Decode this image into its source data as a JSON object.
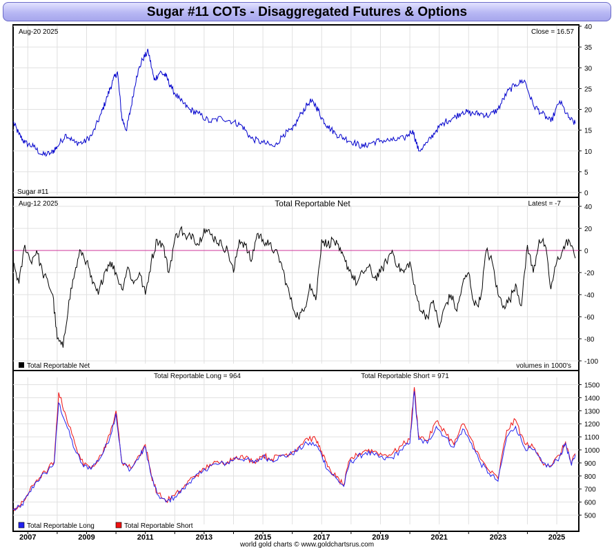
{
  "title": "Sugar #11 COTs - Disaggregated Futures & Options",
  "footer": "world gold charts © www.goldchartsrus.com",
  "colors": {
    "price": "#0000cc",
    "net": "#000000",
    "long": "#2222ee",
    "short": "#ee1111",
    "zero_line": "#cc3399",
    "background": "#ffffff",
    "panel_border": "#000000",
    "grid": "#e0e0e0"
  },
  "panels": {
    "price": {
      "date_label": "Aug-20  2025",
      "close_label": "Close = 16.57",
      "name_label": "Sugar #11"
    },
    "net": {
      "date_label": "Aug-12  2025",
      "title": "Total Reportable Net",
      "latest_label": "Latest = -7",
      "volume_note": "volumes in 1000's",
      "legend": "Total Reportable Net"
    },
    "ls": {
      "long_label": "Total Reportable Long = 964",
      "short_label": "Total Reportable Short = 971",
      "legend_long": "Total Reportable Long",
      "legend_short": "Total Reportable Short"
    }
  },
  "chart_data": [
    {
      "type": "line",
      "name": "price",
      "ylim": [
        0,
        40
      ],
      "yticks": [
        0,
        5,
        10,
        15,
        20,
        25,
        30,
        35,
        40
      ],
      "xlim": [
        2006.5,
        2025.75
      ],
      "x": [
        2006.5,
        2006.7,
        2006.9,
        2007.2,
        2007.5,
        2007.8,
        2008.0,
        2008.3,
        2008.6,
        2008.9,
        2009.2,
        2009.5,
        2009.7,
        2009.9,
        2010.05,
        2010.2,
        2010.35,
        2010.5,
        2010.7,
        2010.9,
        2011.1,
        2011.3,
        2011.5,
        2011.7,
        2011.9,
        2012.2,
        2012.5,
        2012.8,
        2013.2,
        2013.6,
        2014.0,
        2014.3,
        2014.6,
        2015.0,
        2015.4,
        2015.7,
        2016.0,
        2016.3,
        2016.6,
        2016.8,
        2017.0,
        2017.2,
        2017.5,
        2017.8,
        2018.1,
        2018.4,
        2018.7,
        2019.0,
        2019.4,
        2019.8,
        2020.1,
        2020.3,
        2020.6,
        2020.9,
        2021.2,
        2021.5,
        2021.8,
        2022.1,
        2022.4,
        2022.7,
        2023.0,
        2023.3,
        2023.6,
        2023.9,
        2024.2,
        2024.5,
        2024.8,
        2025.1,
        2025.4,
        2025.63
      ],
      "y": [
        17,
        14,
        12,
        11,
        9,
        9.5,
        11,
        14,
        12,
        12,
        14,
        19,
        23,
        27,
        29,
        18,
        15,
        20,
        28,
        32,
        34,
        27,
        29,
        28,
        25,
        22,
        20,
        19,
        17,
        18,
        17,
        16,
        13,
        12,
        11,
        14,
        15,
        19,
        22,
        21,
        18,
        16,
        14,
        13,
        12,
        11,
        12,
        12.5,
        12.5,
        13,
        15,
        10,
        12,
        15,
        17,
        18,
        19.5,
        19,
        19,
        18.5,
        20,
        24,
        26,
        27,
        21,
        19,
        17,
        22,
        18,
        16.57
      ],
      "ylabel": "",
      "labels": [
        "Sugar #11"
      ]
    },
    {
      "type": "line",
      "name": "Total Reportable Net",
      "ylim": [
        -100,
        40
      ],
      "yticks": [
        -100,
        -80,
        -60,
        -40,
        -20,
        0,
        20,
        40
      ],
      "xlim": [
        2006.5,
        2025.75
      ],
      "x": [
        2006.5,
        2006.7,
        2006.9,
        2007.1,
        2007.3,
        2007.5,
        2007.7,
        2007.85,
        2008.0,
        2008.2,
        2008.4,
        2008.6,
        2008.8,
        2009.0,
        2009.2,
        2009.4,
        2009.6,
        2009.8,
        2010.0,
        2010.2,
        2010.4,
        2010.6,
        2010.8,
        2011.0,
        2011.2,
        2011.4,
        2011.6,
        2011.8,
        2012.0,
        2012.2,
        2012.4,
        2012.6,
        2012.8,
        2013.0,
        2013.2,
        2013.4,
        2013.6,
        2013.8,
        2014.0,
        2014.2,
        2014.4,
        2014.6,
        2014.8,
        2015.0,
        2015.2,
        2015.4,
        2015.6,
        2015.8,
        2016.0,
        2016.2,
        2016.4,
        2016.6,
        2016.8,
        2017.0,
        2017.2,
        2017.4,
        2017.6,
        2017.8,
        2018.0,
        2018.2,
        2018.4,
        2018.6,
        2018.8,
        2019.0,
        2019.2,
        2019.4,
        2019.6,
        2019.8,
        2020.0,
        2020.2,
        2020.4,
        2020.6,
        2020.8,
        2021.0,
        2021.2,
        2021.4,
        2021.6,
        2021.8,
        2022.0,
        2022.2,
        2022.4,
        2022.6,
        2022.8,
        2023.0,
        2023.2,
        2023.4,
        2023.6,
        2023.8,
        2024.0,
        2024.2,
        2024.4,
        2024.6,
        2024.8,
        2025.0,
        2025.2,
        2025.4,
        2025.63
      ],
      "y": [
        -10,
        -30,
        5,
        -10,
        0,
        -20,
        -30,
        -40,
        -80,
        -88,
        -45,
        -20,
        0,
        -10,
        -30,
        -40,
        -20,
        -10,
        -20,
        -35,
        -15,
        -30,
        -20,
        -40,
        -10,
        10,
        5,
        -20,
        10,
        20,
        10,
        15,
        5,
        20,
        15,
        10,
        5,
        0,
        -20,
        10,
        5,
        -10,
        15,
        10,
        5,
        0,
        -10,
        -30,
        -50,
        -60,
        -55,
        -30,
        -45,
        10,
        5,
        10,
        0,
        -10,
        -20,
        -30,
        -20,
        -15,
        -25,
        -20,
        -10,
        0,
        -15,
        -20,
        -10,
        -40,
        -55,
        -60,
        -45,
        -70,
        -50,
        -40,
        -55,
        -30,
        -20,
        -50,
        -45,
        0,
        -10,
        -40,
        -50,
        -45,
        -30,
        -50,
        5,
        -20,
        10,
        5,
        -35,
        -10,
        0,
        10,
        -7
      ],
      "ylabel": "",
      "labels": [
        "volumes in 1000's"
      ]
    },
    {
      "type": "line",
      "name": "Total Reportable Long / Short",
      "ylim": [
        450,
        1550
      ],
      "yticks": [
        500,
        600,
        700,
        800,
        900,
        1000,
        1100,
        1200,
        1300,
        1400,
        1500
      ],
      "xlim": [
        2006.5,
        2025.75
      ],
      "x": [
        2006.5,
        2006.75,
        2007.0,
        2007.3,
        2007.6,
        2007.9,
        2008.05,
        2008.3,
        2008.6,
        2008.9,
        2009.2,
        2009.5,
        2009.8,
        2010.0,
        2010.2,
        2010.5,
        2010.8,
        2011.0,
        2011.2,
        2011.4,
        2011.7,
        2012.0,
        2012.3,
        2012.6,
        2012.9,
        2013.2,
        2013.5,
        2013.8,
        2014.1,
        2014.4,
        2014.7,
        2015.0,
        2015.3,
        2015.6,
        2015.9,
        2016.2,
        2016.5,
        2016.8,
        2017.0,
        2017.2,
        2017.5,
        2017.75,
        2017.95,
        2018.2,
        2018.5,
        2018.8,
        2019.1,
        2019.4,
        2019.7,
        2020.0,
        2020.15,
        2020.3,
        2020.6,
        2020.9,
        2021.2,
        2021.5,
        2021.8,
        2022.1,
        2022.4,
        2022.7,
        2023.0,
        2023.3,
        2023.6,
        2023.9,
        2024.2,
        2024.5,
        2024.8,
        2025.1,
        2025.3,
        2025.5,
        2025.63
      ],
      "series": [
        {
          "name": "Total Reportable Long",
          "values": [
            540,
            560,
            650,
            760,
            820,
            900,
            1360,
            1200,
            1000,
            870,
            870,
            950,
            1100,
            1280,
            900,
            850,
            950,
            1020,
            800,
            660,
            600,
            640,
            700,
            780,
            820,
            880,
            890,
            900,
            940,
            930,
            900,
            950,
            920,
            950,
            960,
            1000,
            1050,
            1040,
            960,
            850,
            780,
            720,
            900,
            940,
            980,
            960,
            930,
            940,
            1000,
            1050,
            1450,
            1080,
            1050,
            1180,
            1100,
            1020,
            1160,
            1050,
            900,
            820,
            760,
            1100,
            1180,
            1020,
            1000,
            900,
            870,
            950,
            1050,
            880,
            964
          ]
        },
        {
          "name": "Total Reportable Short",
          "values": [
            550,
            570,
            660,
            770,
            830,
            910,
            1440,
            1260,
            1050,
            880,
            880,
            960,
            1120,
            1300,
            910,
            860,
            960,
            1040,
            810,
            670,
            610,
            650,
            710,
            790,
            830,
            890,
            900,
            910,
            950,
            940,
            910,
            960,
            930,
            960,
            970,
            1020,
            1090,
            1080,
            990,
            870,
            790,
            730,
            920,
            960,
            1000,
            990,
            960,
            970,
            1030,
            1080,
            1480,
            1110,
            1070,
            1220,
            1140,
            1040,
            1200,
            1080,
            930,
            840,
            780,
            1150,
            1230,
            1050,
            1020,
            910,
            880,
            960,
            1060,
            890,
            971
          ]
        }
      ]
    }
  ],
  "x_axis": {
    "tick_labels": [
      "2007",
      "2009",
      "2011",
      "2013",
      "2015",
      "2017",
      "2019",
      "2021",
      "2023",
      "2025"
    ]
  }
}
